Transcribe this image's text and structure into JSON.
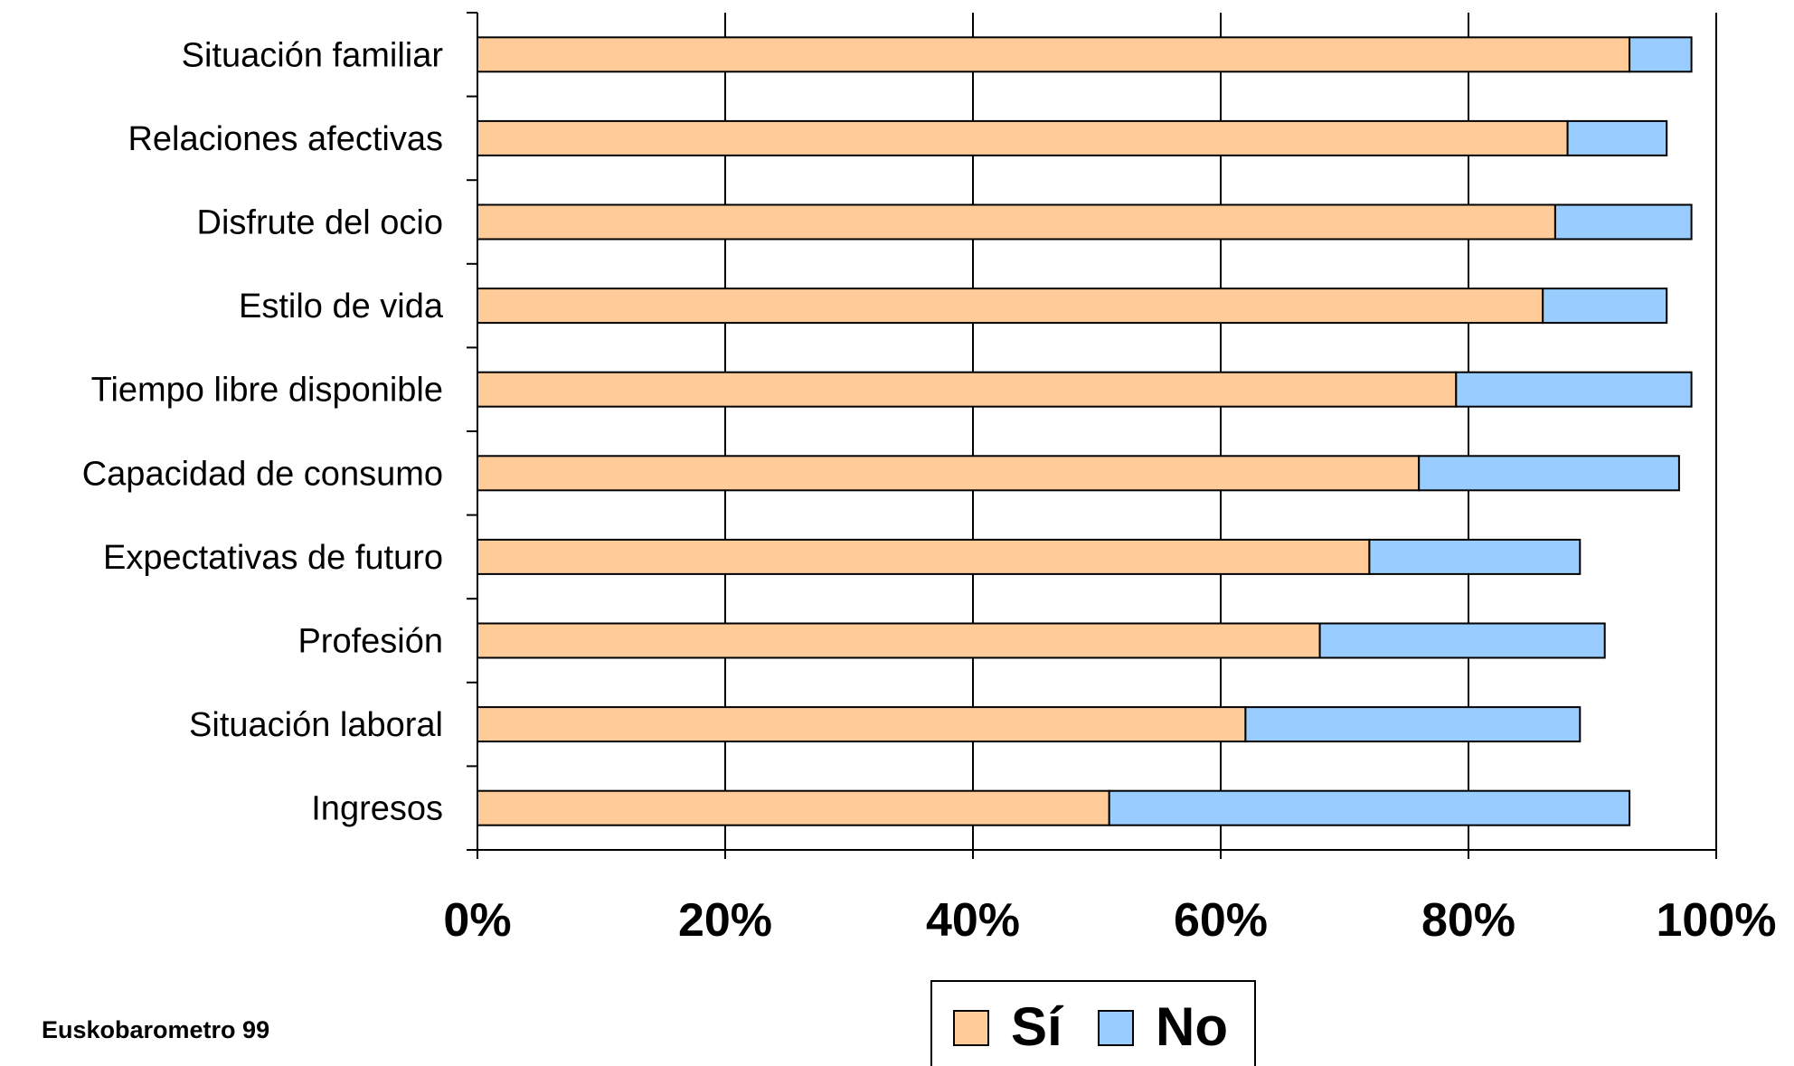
{
  "chart_data": {
    "type": "bar",
    "orientation": "horizontal",
    "stacked": true,
    "categories": [
      "Situación familiar",
      "Relaciones afectivas",
      "Disfrute del ocio",
      "Estilo de vida",
      "Tiempo libre disponible",
      "Capacidad de consumo",
      "Expectativas de futuro",
      "Profesión",
      "Situación laboral",
      "Ingresos"
    ],
    "series": [
      {
        "name": "Sí",
        "color": "#FFCC99",
        "values": [
          93,
          88,
          87,
          86,
          79,
          76,
          72,
          68,
          62,
          51
        ]
      },
      {
        "name": "No",
        "color": "#99CCFF",
        "values": [
          5,
          8,
          11,
          10,
          19,
          21,
          17,
          23,
          27,
          42
        ]
      }
    ],
    "xlim": [
      0,
      100
    ],
    "x_ticks": [
      "0%",
      "20%",
      "40%",
      "60%",
      "80%",
      "100%"
    ],
    "grid": "vertical",
    "legend_position": "bottom"
  },
  "source_note": "Euskobarometro  99"
}
